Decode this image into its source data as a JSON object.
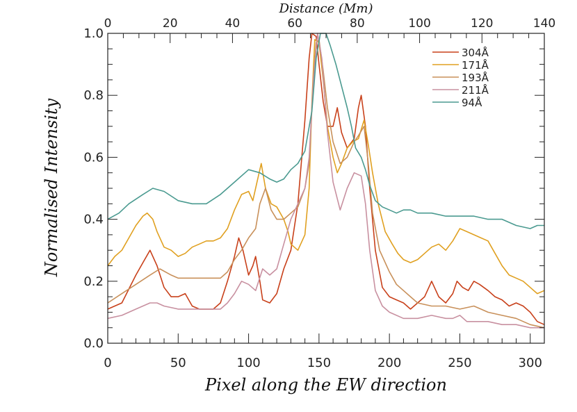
{
  "chart_data": {
    "type": "line",
    "title": "",
    "xlabel": "Pixel along the EW direction",
    "ylabel": "Normalised Intensity",
    "x2label": "Distance (Mm)",
    "xlim": [
      0,
      310
    ],
    "ylim": [
      0.0,
      1.0
    ],
    "x2lim": [
      0,
      140
    ],
    "x_ticks": [
      0,
      50,
      100,
      150,
      200,
      250,
      300
    ],
    "x_tick_labels": [
      "0",
      "50",
      "100",
      "150",
      "200",
      "250",
      "300"
    ],
    "y_ticks": [
      0.0,
      0.2,
      0.4,
      0.6,
      0.8,
      1.0
    ],
    "y_tick_labels": [
      "0.0",
      "0.2",
      "0.4",
      "0.6",
      "0.8",
      "1.0"
    ],
    "x2_ticks": [
      0,
      20,
      40,
      60,
      80,
      100,
      120,
      140
    ],
    "x2_tick_labels": [
      "0",
      "20",
      "40",
      "60",
      "80",
      "100",
      "120",
      "140"
    ],
    "legend_position": "top-right",
    "grid": false,
    "series": [
      {
        "name": "304Å",
        "color": "#c8401a",
        "points": [
          [
            0,
            0.11
          ],
          [
            10,
            0.13
          ],
          [
            20,
            0.22
          ],
          [
            25,
            0.26
          ],
          [
            30,
            0.3
          ],
          [
            35,
            0.25
          ],
          [
            40,
            0.18
          ],
          [
            45,
            0.15
          ],
          [
            50,
            0.15
          ],
          [
            55,
            0.16
          ],
          [
            60,
            0.12
          ],
          [
            65,
            0.11
          ],
          [
            70,
            0.11
          ],
          [
            75,
            0.11
          ],
          [
            80,
            0.13
          ],
          [
            85,
            0.2
          ],
          [
            90,
            0.28
          ],
          [
            93,
            0.34
          ],
          [
            96,
            0.3
          ],
          [
            100,
            0.22
          ],
          [
            103,
            0.25
          ],
          [
            105,
            0.28
          ],
          [
            108,
            0.2
          ],
          [
            110,
            0.14
          ],
          [
            115,
            0.13
          ],
          [
            120,
            0.16
          ],
          [
            125,
            0.24
          ],
          [
            130,
            0.3
          ],
          [
            135,
            0.45
          ],
          [
            140,
            0.72
          ],
          [
            143,
            0.92
          ],
          [
            145,
            1.0
          ],
          [
            148,
            0.99
          ],
          [
            150,
            0.9
          ],
          [
            153,
            0.78
          ],
          [
            156,
            0.7
          ],
          [
            160,
            0.7
          ],
          [
            163,
            0.76
          ],
          [
            166,
            0.68
          ],
          [
            170,
            0.63
          ],
          [
            175,
            0.66
          ],
          [
            178,
            0.76
          ],
          [
            180,
            0.8
          ],
          [
            183,
            0.7
          ],
          [
            186,
            0.5
          ],
          [
            190,
            0.3
          ],
          [
            195,
            0.18
          ],
          [
            200,
            0.15
          ],
          [
            205,
            0.14
          ],
          [
            210,
            0.13
          ],
          [
            215,
            0.11
          ],
          [
            220,
            0.13
          ],
          [
            225,
            0.15
          ],
          [
            230,
            0.2
          ],
          [
            235,
            0.15
          ],
          [
            240,
            0.13
          ],
          [
            245,
            0.16
          ],
          [
            248,
            0.2
          ],
          [
            252,
            0.18
          ],
          [
            256,
            0.17
          ],
          [
            260,
            0.2
          ],
          [
            264,
            0.19
          ],
          [
            270,
            0.17
          ],
          [
            275,
            0.15
          ],
          [
            280,
            0.14
          ],
          [
            285,
            0.12
          ],
          [
            290,
            0.13
          ],
          [
            295,
            0.12
          ],
          [
            300,
            0.1
          ],
          [
            305,
            0.07
          ],
          [
            310,
            0.06
          ]
        ]
      },
      {
        "name": "171Å",
        "color": "#e0a020",
        "points": [
          [
            0,
            0.25
          ],
          [
            5,
            0.28
          ],
          [
            10,
            0.3
          ],
          [
            15,
            0.34
          ],
          [
            20,
            0.38
          ],
          [
            25,
            0.41
          ],
          [
            28,
            0.42
          ],
          [
            32,
            0.4
          ],
          [
            35,
            0.36
          ],
          [
            40,
            0.31
          ],
          [
            45,
            0.3
          ],
          [
            50,
            0.28
          ],
          [
            55,
            0.29
          ],
          [
            60,
            0.31
          ],
          [
            65,
            0.32
          ],
          [
            70,
            0.33
          ],
          [
            75,
            0.33
          ],
          [
            80,
            0.34
          ],
          [
            85,
            0.37
          ],
          [
            90,
            0.43
          ],
          [
            95,
            0.48
          ],
          [
            100,
            0.49
          ],
          [
            103,
            0.46
          ],
          [
            106,
            0.52
          ],
          [
            109,
            0.58
          ],
          [
            112,
            0.5
          ],
          [
            116,
            0.45
          ],
          [
            120,
            0.44
          ],
          [
            125,
            0.4
          ],
          [
            128,
            0.36
          ],
          [
            130,
            0.32
          ],
          [
            135,
            0.3
          ],
          [
            140,
            0.35
          ],
          [
            143,
            0.5
          ],
          [
            145,
            0.78
          ],
          [
            147,
            0.98
          ],
          [
            150,
            0.97
          ],
          [
            153,
            0.85
          ],
          [
            156,
            0.7
          ],
          [
            160,
            0.6
          ],
          [
            163,
            0.55
          ],
          [
            166,
            0.58
          ],
          [
            170,
            0.63
          ],
          [
            174,
            0.65
          ],
          [
            178,
            0.66
          ],
          [
            182,
            0.72
          ],
          [
            185,
            0.64
          ],
          [
            188,
            0.55
          ],
          [
            192,
            0.45
          ],
          [
            197,
            0.36
          ],
          [
            202,
            0.32
          ],
          [
            206,
            0.29
          ],
          [
            210,
            0.27
          ],
          [
            215,
            0.26
          ],
          [
            220,
            0.27
          ],
          [
            225,
            0.29
          ],
          [
            230,
            0.31
          ],
          [
            235,
            0.32
          ],
          [
            240,
            0.3
          ],
          [
            245,
            0.33
          ],
          [
            250,
            0.37
          ],
          [
            255,
            0.36
          ],
          [
            260,
            0.35
          ],
          [
            265,
            0.34
          ],
          [
            270,
            0.33
          ],
          [
            275,
            0.29
          ],
          [
            280,
            0.25
          ],
          [
            285,
            0.22
          ],
          [
            290,
            0.21
          ],
          [
            295,
            0.2
          ],
          [
            300,
            0.18
          ],
          [
            305,
            0.16
          ],
          [
            310,
            0.17
          ]
        ]
      },
      {
        "name": "193Å",
        "color": "#c8905a",
        "points": [
          [
            0,
            0.13
          ],
          [
            10,
            0.16
          ],
          [
            20,
            0.19
          ],
          [
            30,
            0.22
          ],
          [
            37,
            0.24
          ],
          [
            45,
            0.22
          ],
          [
            50,
            0.21
          ],
          [
            60,
            0.21
          ],
          [
            70,
            0.21
          ],
          [
            80,
            0.21
          ],
          [
            85,
            0.23
          ],
          [
            90,
            0.27
          ],
          [
            95,
            0.3
          ],
          [
            100,
            0.34
          ],
          [
            105,
            0.37
          ],
          [
            108,
            0.45
          ],
          [
            112,
            0.5
          ],
          [
            116,
            0.43
          ],
          [
            120,
            0.4
          ],
          [
            125,
            0.4
          ],
          [
            130,
            0.42
          ],
          [
            135,
            0.44
          ],
          [
            140,
            0.5
          ],
          [
            143,
            0.58
          ],
          [
            146,
            0.85
          ],
          [
            148,
            0.97
          ],
          [
            150,
            0.98
          ],
          [
            153,
            0.88
          ],
          [
            156,
            0.76
          ],
          [
            160,
            0.65
          ],
          [
            165,
            0.58
          ],
          [
            170,
            0.6
          ],
          [
            175,
            0.65
          ],
          [
            178,
            0.67
          ],
          [
            182,
            0.7
          ],
          [
            185,
            0.58
          ],
          [
            188,
            0.42
          ],
          [
            193,
            0.3
          ],
          [
            200,
            0.23
          ],
          [
            205,
            0.19
          ],
          [
            210,
            0.17
          ],
          [
            215,
            0.15
          ],
          [
            220,
            0.13
          ],
          [
            230,
            0.12
          ],
          [
            240,
            0.12
          ],
          [
            250,
            0.11
          ],
          [
            260,
            0.12
          ],
          [
            265,
            0.11
          ],
          [
            270,
            0.1
          ],
          [
            280,
            0.09
          ],
          [
            290,
            0.08
          ],
          [
            300,
            0.06
          ],
          [
            310,
            0.05
          ]
        ]
      },
      {
        "name": "211Å",
        "color": "#c890a0",
        "points": [
          [
            0,
            0.08
          ],
          [
            10,
            0.09
          ],
          [
            20,
            0.11
          ],
          [
            30,
            0.13
          ],
          [
            35,
            0.13
          ],
          [
            40,
            0.12
          ],
          [
            50,
            0.11
          ],
          [
            60,
            0.11
          ],
          [
            70,
            0.11
          ],
          [
            80,
            0.11
          ],
          [
            85,
            0.13
          ],
          [
            90,
            0.16
          ],
          [
            95,
            0.2
          ],
          [
            100,
            0.19
          ],
          [
            105,
            0.17
          ],
          [
            110,
            0.24
          ],
          [
            115,
            0.22
          ],
          [
            120,
            0.24
          ],
          [
            125,
            0.32
          ],
          [
            130,
            0.4
          ],
          [
            135,
            0.45
          ],
          [
            140,
            0.5
          ],
          [
            143,
            0.6
          ],
          [
            146,
            0.85
          ],
          [
            149,
            1.0
          ],
          [
            152,
            0.92
          ],
          [
            156,
            0.68
          ],
          [
            160,
            0.52
          ],
          [
            165,
            0.43
          ],
          [
            170,
            0.5
          ],
          [
            175,
            0.55
          ],
          [
            180,
            0.54
          ],
          [
            183,
            0.45
          ],
          [
            186,
            0.3
          ],
          [
            190,
            0.17
          ],
          [
            195,
            0.12
          ],
          [
            200,
            0.1
          ],
          [
            210,
            0.08
          ],
          [
            220,
            0.08
          ],
          [
            230,
            0.09
          ],
          [
            240,
            0.08
          ],
          [
            245,
            0.08
          ],
          [
            250,
            0.09
          ],
          [
            255,
            0.07
          ],
          [
            260,
            0.07
          ],
          [
            270,
            0.07
          ],
          [
            280,
            0.06
          ],
          [
            290,
            0.06
          ],
          [
            300,
            0.05
          ],
          [
            310,
            0.05
          ]
        ]
      },
      {
        "name": "94Å",
        "color": "#4a9a90",
        "points": [
          [
            0,
            0.4
          ],
          [
            8,
            0.42
          ],
          [
            15,
            0.45
          ],
          [
            25,
            0.48
          ],
          [
            32,
            0.5
          ],
          [
            40,
            0.49
          ],
          [
            50,
            0.46
          ],
          [
            60,
            0.45
          ],
          [
            70,
            0.45
          ],
          [
            80,
            0.48
          ],
          [
            90,
            0.52
          ],
          [
            100,
            0.56
          ],
          [
            108,
            0.55
          ],
          [
            115,
            0.53
          ],
          [
            120,
            0.52
          ],
          [
            125,
            0.53
          ],
          [
            130,
            0.56
          ],
          [
            135,
            0.58
          ],
          [
            140,
            0.62
          ],
          [
            145,
            0.75
          ],
          [
            148,
            0.92
          ],
          [
            151,
            1.0
          ],
          [
            155,
            1.0
          ],
          [
            158,
            0.96
          ],
          [
            162,
            0.9
          ],
          [
            166,
            0.83
          ],
          [
            170,
            0.76
          ],
          [
            173,
            0.7
          ],
          [
            176,
            0.63
          ],
          [
            180,
            0.6
          ],
          [
            183,
            0.56
          ],
          [
            186,
            0.51
          ],
          [
            190,
            0.46
          ],
          [
            195,
            0.44
          ],
          [
            200,
            0.43
          ],
          [
            205,
            0.42
          ],
          [
            210,
            0.43
          ],
          [
            215,
            0.43
          ],
          [
            220,
            0.42
          ],
          [
            230,
            0.42
          ],
          [
            240,
            0.41
          ],
          [
            250,
            0.41
          ],
          [
            260,
            0.41
          ],
          [
            270,
            0.4
          ],
          [
            280,
            0.4
          ],
          [
            290,
            0.38
          ],
          [
            300,
            0.37
          ],
          [
            305,
            0.38
          ],
          [
            310,
            0.38
          ]
        ]
      }
    ]
  }
}
